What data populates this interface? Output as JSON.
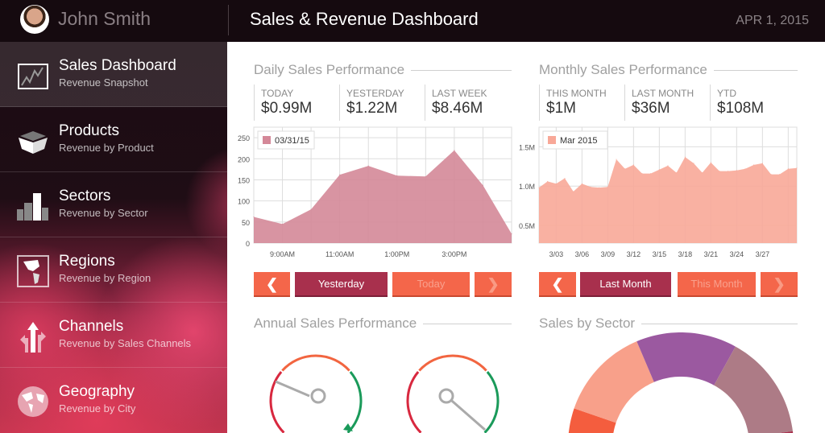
{
  "header": {
    "user_name": "John Smith",
    "title": "Sales & Revenue Dashboard",
    "date": "APR 1, 2015"
  },
  "sidebar": {
    "items": [
      {
        "label": "Sales Dashboard",
        "sub": "Revenue Snapshot",
        "icon": "chart-icon",
        "active": true
      },
      {
        "label": "Products",
        "sub": "Revenue by Product",
        "icon": "box-icon"
      },
      {
        "label": "Sectors",
        "sub": "Revenue by Sector",
        "icon": "buildings-icon"
      },
      {
        "label": "Regions",
        "sub": "Revenue by Region",
        "icon": "map-icon"
      },
      {
        "label": "Channels",
        "sub": "Revenue by Sales Channels",
        "icon": "arrows-icon"
      },
      {
        "label": "Geography",
        "sub": "Revenue by City",
        "icon": "globe-icon"
      }
    ]
  },
  "daily": {
    "title": "Daily Sales Performance",
    "stats": [
      {
        "label": "TODAY",
        "value": "$0.99M"
      },
      {
        "label": "YESTERDAY",
        "value": "$1.22M"
      },
      {
        "label": "LAST WEEK",
        "value": "$8.46M"
      }
    ],
    "buttons": {
      "prev": "❮",
      "selected": "Yesterday",
      "next_period": "Today",
      "next": "❯"
    }
  },
  "monthly": {
    "title": "Monthly Sales Performance",
    "stats": [
      {
        "label": "THIS MONTH",
        "value": "$1M"
      },
      {
        "label": "LAST MONTH",
        "value": "$36M"
      },
      {
        "label": "YTD",
        "value": "$108M"
      }
    ],
    "buttons": {
      "prev": "❮",
      "selected": "Last Month",
      "next_period": "This Month",
      "next": "❯"
    }
  },
  "annual": {
    "title": "Annual Sales Performance"
  },
  "sector": {
    "title": "Sales by Sector"
  },
  "chart_data": [
    {
      "type": "area",
      "legend": "03/31/15",
      "color": "#d48898",
      "x": [
        8,
        9,
        10,
        11,
        12,
        13,
        14,
        15,
        16,
        17
      ],
      "values": [
        62,
        45,
        80,
        162,
        183,
        160,
        158,
        220,
        137,
        22
      ],
      "xticks": [
        {
          "at": 9,
          "label": "9:00AM"
        },
        {
          "at": 11,
          "label": "11:00AM"
        },
        {
          "at": 13,
          "label": "1:00PM"
        },
        {
          "at": 15,
          "label": "3:00PM"
        }
      ],
      "yticks": [
        0,
        50,
        100,
        150,
        200,
        250
      ],
      "ytick_labels": [
        "0",
        "50",
        "100",
        "150",
        "200",
        "250"
      ],
      "ylim": [
        0,
        275
      ],
      "xlim": [
        8,
        17
      ],
      "grid": true,
      "legend_position": "top-left"
    },
    {
      "type": "area",
      "legend": "Mar 2015",
      "color": "#f8a898",
      "x": [
        1,
        2,
        3,
        4,
        5,
        6,
        7,
        8,
        9,
        10,
        11,
        12,
        13,
        14,
        15,
        16,
        17,
        18,
        19,
        20,
        21,
        22,
        23,
        24,
        25,
        26,
        27,
        28,
        29,
        30,
        31
      ],
      "values": [
        0.98,
        1.06,
        1.03,
        1.1,
        0.93,
        1.03,
        0.99,
        0.98,
        0.99,
        1.34,
        1.22,
        1.27,
        1.16,
        1.16,
        1.21,
        1.26,
        1.17,
        1.37,
        1.29,
        1.17,
        1.3,
        1.19,
        1.19,
        1.2,
        1.22,
        1.27,
        1.29,
        1.15,
        1.15,
        1.22,
        1.23
      ],
      "xticks": [
        {
          "at": 3,
          "label": "3/03"
        },
        {
          "at": 6,
          "label": "3/06"
        },
        {
          "at": 9,
          "label": "3/09"
        },
        {
          "at": 12,
          "label": "3/12"
        },
        {
          "at": 15,
          "label": "3/15"
        },
        {
          "at": 18,
          "label": "3/18"
        },
        {
          "at": 21,
          "label": "3/21"
        },
        {
          "at": 24,
          "label": "3/24"
        },
        {
          "at": 27,
          "label": "3/27"
        }
      ],
      "yticks": [
        0.5,
        1.0,
        1.5
      ],
      "ytick_labels": [
        "0.5M",
        "1.0M",
        "1.5M"
      ],
      "ylim": [
        0.275,
        1.75
      ],
      "xlim": [
        1,
        31
      ],
      "grid": true,
      "legend_position": "top-left"
    },
    {
      "type": "gauge",
      "values": [
        -62,
        135
      ],
      "value_unit": "needle angle deg"
    },
    {
      "type": "pie",
      "donut": true,
      "values": [
        109,
        48,
        52,
        54,
        97
      ],
      "colors": [
        "#f45d3e",
        "#f8a08a",
        "#9b59a0",
        "#ad7b86",
        "#a8304d"
      ]
    }
  ]
}
